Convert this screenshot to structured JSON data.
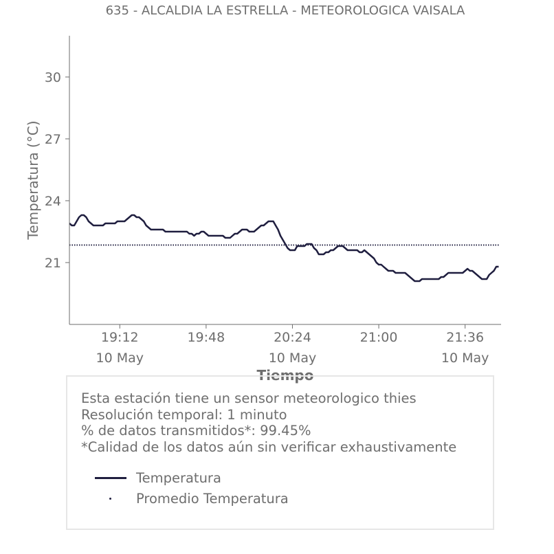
{
  "chart_data": {
    "type": "line",
    "title": "635 - ALCALDIA LA ESTRELLA - METEOROLOGICA VAISALA",
    "xlabel": "Tiempo",
    "ylabel": "Temperatura (°C)",
    "ylim": [
      18.0,
      32.0
    ],
    "xlim": [
      "18:51",
      "21:51"
    ],
    "yticks": [
      21,
      24,
      27,
      30
    ],
    "xticks": [
      {
        "time": "19:12",
        "date": "10 May"
      },
      {
        "time": "19:48",
        "date": ""
      },
      {
        "time": "20:24",
        "date": "10 May"
      },
      {
        "time": "21:00",
        "date": ""
      },
      {
        "time": "21:36",
        "date": "10 May"
      }
    ],
    "grid": false,
    "series": [
      {
        "name": "Temperatura",
        "style": "solid",
        "color": "#1f1e3f",
        "points": [
          [
            "18:51",
            22.9
          ],
          [
            "18:52",
            22.8
          ],
          [
            "18:53",
            22.8
          ],
          [
            "18:54",
            23.0
          ],
          [
            "18:55",
            23.2
          ],
          [
            "18:56",
            23.3
          ],
          [
            "18:57",
            23.3
          ],
          [
            "18:58",
            23.2
          ],
          [
            "18:59",
            23.0
          ],
          [
            "19:00",
            22.9
          ],
          [
            "19:01",
            22.8
          ],
          [
            "19:05",
            22.8
          ],
          [
            "19:06",
            22.9
          ],
          [
            "19:10",
            22.9
          ],
          [
            "19:11",
            23.0
          ],
          [
            "19:14",
            23.0
          ],
          [
            "19:15",
            23.1
          ],
          [
            "19:16",
            23.2
          ],
          [
            "19:17",
            23.3
          ],
          [
            "19:18",
            23.3
          ],
          [
            "19:19",
            23.2
          ],
          [
            "19:20",
            23.2
          ],
          [
            "19:21",
            23.1
          ],
          [
            "19:22",
            23.0
          ],
          [
            "19:23",
            22.8
          ],
          [
            "19:24",
            22.7
          ],
          [
            "19:25",
            22.6
          ],
          [
            "19:30",
            22.6
          ],
          [
            "19:31",
            22.5
          ],
          [
            "19:40",
            22.5
          ],
          [
            "19:41",
            22.4
          ],
          [
            "19:42",
            22.4
          ],
          [
            "19:43",
            22.3
          ],
          [
            "19:44",
            22.4
          ],
          [
            "19:45",
            22.4
          ],
          [
            "19:46",
            22.5
          ],
          [
            "19:47",
            22.5
          ],
          [
            "19:48",
            22.4
          ],
          [
            "19:49",
            22.3
          ],
          [
            "19:55",
            22.3
          ],
          [
            "19:56",
            22.2
          ],
          [
            "19:58",
            22.2
          ],
          [
            "19:59",
            22.3
          ],
          [
            "20:00",
            22.4
          ],
          [
            "20:01",
            22.4
          ],
          [
            "20:02",
            22.5
          ],
          [
            "20:03",
            22.6
          ],
          [
            "20:05",
            22.6
          ],
          [
            "20:06",
            22.5
          ],
          [
            "20:08",
            22.5
          ],
          [
            "20:09",
            22.6
          ],
          [
            "20:10",
            22.7
          ],
          [
            "20:11",
            22.8
          ],
          [
            "20:12",
            22.8
          ],
          [
            "20:13",
            22.9
          ],
          [
            "20:14",
            23.0
          ],
          [
            "20:16",
            23.0
          ],
          [
            "20:17",
            22.8
          ],
          [
            "20:18",
            22.6
          ],
          [
            "20:19",
            22.3
          ],
          [
            "20:20",
            22.1
          ],
          [
            "20:21",
            21.9
          ],
          [
            "20:22",
            21.7
          ],
          [
            "20:23",
            21.6
          ],
          [
            "20:25",
            21.6
          ],
          [
            "20:26",
            21.8
          ],
          [
            "20:29",
            21.8
          ],
          [
            "20:30",
            21.9
          ],
          [
            "20:32",
            21.9
          ],
          [
            "20:33",
            21.7
          ],
          [
            "20:34",
            21.6
          ],
          [
            "20:35",
            21.4
          ],
          [
            "20:37",
            21.4
          ],
          [
            "20:38",
            21.5
          ],
          [
            "20:39",
            21.5
          ],
          [
            "20:40",
            21.6
          ],
          [
            "20:41",
            21.6
          ],
          [
            "20:42",
            21.7
          ],
          [
            "20:43",
            21.8
          ],
          [
            "20:45",
            21.8
          ],
          [
            "20:46",
            21.7
          ],
          [
            "20:47",
            21.6
          ],
          [
            "20:51",
            21.6
          ],
          [
            "20:52",
            21.5
          ],
          [
            "20:53",
            21.5
          ],
          [
            "20:54",
            21.6
          ],
          [
            "20:55",
            21.5
          ],
          [
            "20:56",
            21.4
          ],
          [
            "20:57",
            21.3
          ],
          [
            "20:58",
            21.2
          ],
          [
            "20:59",
            21.0
          ],
          [
            "21:00",
            20.9
          ],
          [
            "21:01",
            20.9
          ],
          [
            "21:02",
            20.8
          ],
          [
            "21:03",
            20.7
          ],
          [
            "21:04",
            20.6
          ],
          [
            "21:06",
            20.6
          ],
          [
            "21:07",
            20.5
          ],
          [
            "21:11",
            20.5
          ],
          [
            "21:12",
            20.4
          ],
          [
            "21:13",
            20.3
          ],
          [
            "21:14",
            20.2
          ],
          [
            "21:15",
            20.1
          ],
          [
            "21:17",
            20.1
          ],
          [
            "21:18",
            20.2
          ],
          [
            "21:25",
            20.2
          ],
          [
            "21:26",
            20.3
          ],
          [
            "21:27",
            20.3
          ],
          [
            "21:28",
            20.4
          ],
          [
            "21:29",
            20.5
          ],
          [
            "21:35",
            20.5
          ],
          [
            "21:36",
            20.6
          ],
          [
            "21:37",
            20.7
          ],
          [
            "21:38",
            20.6
          ],
          [
            "21:39",
            20.6
          ],
          [
            "21:40",
            20.5
          ],
          [
            "21:41",
            20.4
          ],
          [
            "21:42",
            20.3
          ],
          [
            "21:43",
            20.2
          ],
          [
            "21:45",
            20.2
          ],
          [
            "21:46",
            20.4
          ],
          [
            "21:47",
            20.5
          ],
          [
            "21:48",
            20.6
          ],
          [
            "21:49",
            20.8
          ],
          [
            "21:50",
            20.8
          ]
        ]
      },
      {
        "name": "Promedio Temperatura",
        "style": "dotted",
        "color": "#1f1e3f",
        "value": 21.85,
        "x_range": [
          "18:51",
          "21:50"
        ]
      }
    ],
    "legend_placement": "bottom-left, inside info box"
  },
  "info": {
    "lines": [
      "Esta estación tiene un sensor meteorologico thies",
      "Resolución temporal: 1 minuto",
      "% de datos transmitidos*: 99.45%",
      "*Calidad de los datos aún sin verificar exhaustivamente"
    ]
  },
  "legend": {
    "items": [
      "Temperatura",
      "Promedio Temperatura"
    ]
  },
  "colors": {
    "line": "#1f1e3f",
    "text": "#6e6e6e",
    "box_border": "#e6e6e6"
  }
}
